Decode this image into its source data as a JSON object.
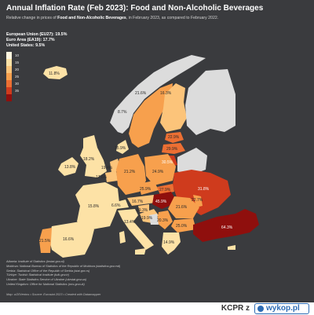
{
  "header": {
    "title": "Annual Inflation Rate (Feb 2023): Food and Non-Alcoholic Beverages",
    "subtitle_pre": "Relative change in prices of ",
    "subtitle_bold": "Food and Non-Alcoholic Beverages",
    "subtitle_post": ", in February 2023, as compared to February 2022."
  },
  "stats": {
    "eu": "European Union (EU27): 19.5%",
    "ea": "Euro Area (EA19): 17.7%",
    "us": "United States: 9.5%"
  },
  "legend": [
    {
      "label": "10",
      "color": "#fff6e0"
    },
    {
      "label": "15",
      "color": "#fde2a6"
    },
    {
      "label": "20",
      "color": "#fcc47a"
    },
    {
      "label": "25",
      "color": "#f7a04d"
    },
    {
      "label": "30",
      "color": "#ec6f33"
    },
    {
      "label": "35",
      "color": "#cf3b1d"
    },
    {
      "label": "",
      "color": "#8f0f0d"
    }
  ],
  "map": {
    "colors": {
      "sea": "#3a3b3e",
      "nodata": "#dcdcdc",
      "low": "#fde2a6",
      "mid": "#fcc47a",
      "high": "#f7a04d",
      "higher": "#ec6f33",
      "veryhigh": "#cf3b1d",
      "extreme": "#8f0f0d"
    },
    "labels": {
      "iceland": "11.8%",
      "norway": "8.7%",
      "sweden": "21.6%",
      "finland": "16.3%",
      "estonia": "22.9%",
      "latvia": "29.9%",
      "lithuania": "30.5%",
      "uk": "18.2%",
      "denmark": "15.9%",
      "netherlands": "19.4%",
      "belgium": "17.6%",
      "germany": "21.2%",
      "poland": "24.9%",
      "ukraine": "31.8%",
      "czechia": "25.9%",
      "slovakia": "27.9%",
      "france": "15.8%",
      "switzerland": "6.6%",
      "austria": "16.7%",
      "slovenia": "19.3%",
      "hungary": "45.9%",
      "moldova": "22.7%",
      "romania": "21.6%",
      "italy": "13.4%",
      "croatia": "19.9%",
      "serbia": "20.3%",
      "bulgaria": "25.0%",
      "spain": "16.6%",
      "portugal": "21.5%",
      "greece": "14.9%",
      "turkey": "64.3%",
      "ireland": "13.8%"
    }
  },
  "sources": [
    "Albania: Institute of Statistics (instat.gov.al)",
    "Moldova: National Bureau of Statistics of the Republic of Moldova (statistica.gov.md)",
    "Serbia: Statistical Office of the Republic of Serbia (stat.gov.rs)",
    "Türkiye: Turkish Statistical Institute (tuik.gov.tr)",
    "Ukraine: State Statistics Service of Ukraine (ukrstat.gov.ua)",
    "United Kingdom: Office for National Statistics (ons.gov.uk)"
  ],
  "credits": "Map: u/20Ventos • Source: Eurostat 2023 • Created with Datawrapper",
  "watermark": {
    "user": "KCPR",
    "separator": "z",
    "logo": "wykop.pl"
  }
}
